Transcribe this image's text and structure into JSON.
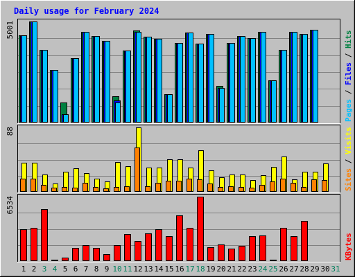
{
  "chart_data": {
    "type": "bar",
    "title": "Daily usage for February 2024",
    "categories": [
      "1",
      "2",
      "3",
      "4",
      "5",
      "6",
      "7",
      "8",
      "9",
      "10",
      "11",
      "12",
      "13",
      "14",
      "15",
      "16",
      "17",
      "18",
      "19",
      "20",
      "21",
      "22",
      "23",
      "24",
      "25",
      "26",
      "27",
      "28",
      "29",
      "30",
      "31"
    ],
    "weekend_days": [
      "3",
      "4",
      "10",
      "11",
      "17",
      "18",
      "24",
      "25",
      "31"
    ],
    "panels": [
      {
        "id": "hits-files-pages",
        "max_label": "5001",
        "ylim": [
          0,
          5001
        ],
        "grid": true,
        "series": [
          {
            "name": "Hits",
            "color": "#008040",
            "values": [
              4300,
              5001,
              3600,
              2600,
              1000,
              3200,
              4500,
              4280,
              4050,
              1300,
              3550,
              4550,
              4250,
              4150,
              1400,
              3950,
              4450,
              3900,
              4400,
              1800,
              3950,
              4270,
              4170,
              4500,
              2100,
              3600,
              4500,
              4400,
              4600,
              0,
              0
            ]
          },
          {
            "name": "Files",
            "color": "#0000ff",
            "values": [
              4300,
              5001,
              3600,
              2600,
              400,
              3200,
              4500,
              4280,
              4050,
              1100,
              3550,
              4500,
              4250,
              4150,
              1400,
              3950,
              4450,
              3900,
              4400,
              1700,
              3950,
              4270,
              4170,
              4500,
              2100,
              3600,
              4500,
              4400,
              4600,
              0,
              0
            ]
          },
          {
            "name": "Pages",
            "color": "#00c0ff",
            "values": [
              4300,
              5001,
              3600,
              2600,
              400,
              3200,
              4500,
              4280,
              4050,
              1000,
              3550,
              4500,
              4250,
              4150,
              1400,
              3950,
              4450,
              3900,
              4400,
              1700,
              3950,
              4270,
              4170,
              4500,
              2100,
              3600,
              4500,
              4400,
              4600,
              0,
              0
            ]
          }
        ]
      },
      {
        "id": "visits-sites",
        "max_label": "88",
        "ylim": [
          0,
          88
        ],
        "grid": true,
        "series": [
          {
            "name": "Visits",
            "color": "#ffff00",
            "values": [
              40,
              40,
              24,
              11,
              27,
              32,
              26,
              18,
              14,
              41,
              35,
              88,
              33,
              33,
              44,
              44,
              33,
              57,
              29,
              20,
              24,
              24,
              16,
              23,
              34,
              48,
              17,
              27,
              27,
              39,
              0
            ]
          },
          {
            "name": "Sites",
            "color": "#ff8000",
            "values": [
              18,
              18,
              9,
              6,
              7,
              6,
              12,
              7,
              5,
              7,
              8,
              61,
              8,
              12,
              15,
              15,
              18,
              17,
              11,
              7,
              8,
              7,
              6,
              9,
              14,
              18,
              12,
              7,
              17,
              16,
              0
            ]
          }
        ]
      },
      {
        "id": "kbytes",
        "max_label": "6534",
        "ylim": [
          0,
          6534
        ],
        "grid": true,
        "series": [
          {
            "name": "KBytes",
            "color": "#ff0000",
            "values": [
              3220,
              3360,
              5260,
              130,
              330,
              1330,
              1610,
              1300,
              720,
              1610,
              2750,
              2010,
              2810,
              3240,
              2540,
              4650,
              3340,
              6534,
              1430,
              1660,
              1240,
              1560,
              2520,
              2620,
              130,
              3390,
              2530,
              4080,
              0,
              0,
              0
            ]
          }
        ]
      }
    ],
    "legend": {
      "top": [
        {
          "text": "Pages",
          "color": "#00c0ff"
        },
        {
          "text": " / ",
          "color": "#000000"
        },
        {
          "text": "Files",
          "color": "#0000ff"
        },
        {
          "text": " / ",
          "color": "#000000"
        },
        {
          "text": "Hits",
          "color": "#008040"
        }
      ],
      "middle": [
        {
          "text": "Sites",
          "color": "#ff8000"
        },
        {
          "text": " / ",
          "color": "#000000"
        },
        {
          "text": "Visits",
          "color": "#ffff00"
        }
      ],
      "bottom": [
        {
          "text": "KBytes",
          "color": "#ff0000"
        }
      ],
      "placement": "right"
    },
    "colors": {
      "background": "#c0c0c0",
      "title": "#0000ff",
      "weekday_label": "#000000",
      "weekend_label": "#00805c",
      "grid": "#808080"
    }
  }
}
